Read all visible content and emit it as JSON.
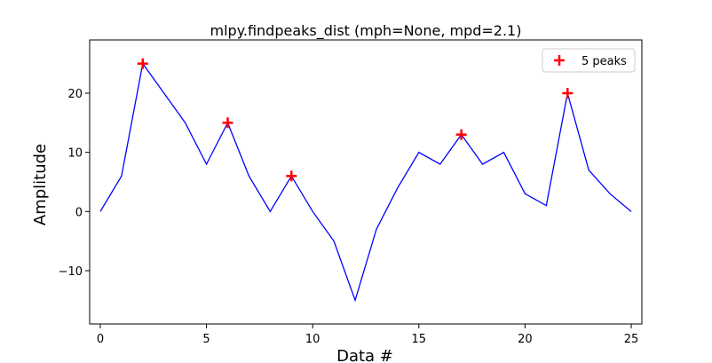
{
  "chart_data": {
    "type": "line",
    "title": "mlpy.findpeaks_dist (mph=None, mpd=2.1)",
    "xlabel": "Data #",
    "ylabel": "Amplitude",
    "xlim": [
      -0.5,
      25.5
    ],
    "ylim": [
      -19,
      29
    ],
    "xticks": [
      0,
      5,
      10,
      15,
      20,
      25
    ],
    "yticks": [
      -10,
      0,
      10,
      20
    ],
    "ytick_labels": [
      "−10",
      "0",
      "10",
      "20"
    ],
    "grid": false,
    "legend_position": "upper-right",
    "series": [
      {
        "type": "line",
        "color": "#0000ff",
        "x": [
          0,
          1,
          2,
          3,
          4,
          5,
          6,
          7,
          8,
          9,
          10,
          11,
          12,
          13,
          14,
          15,
          16,
          17,
          18,
          19,
          20,
          21,
          22,
          23,
          24,
          25
        ],
        "values": [
          0,
          6,
          25,
          20,
          15,
          8,
          15,
          6,
          0,
          6,
          0,
          -5,
          -15,
          -3,
          4,
          10,
          8,
          13,
          8,
          10,
          3,
          1,
          20,
          7,
          3,
          0
        ]
      },
      {
        "name": "5 peaks",
        "type": "marker",
        "marker": "+",
        "color": "#ff0000",
        "x": [
          2,
          6,
          9,
          17,
          22
        ],
        "values": [
          25,
          15,
          6,
          13,
          20
        ]
      }
    ]
  }
}
